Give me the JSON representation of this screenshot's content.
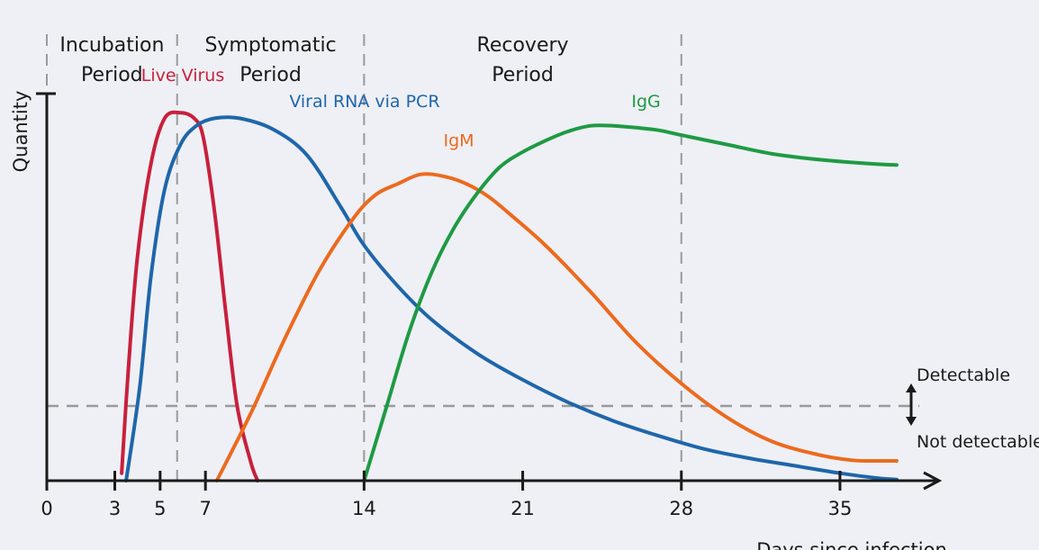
{
  "chart_data": {
    "type": "line",
    "title": "",
    "ylabel": "Quantity",
    "xlabel": "Days since infection",
    "xlim": [
      0,
      38
    ],
    "ylim": [
      0,
      100
    ],
    "x_ticks": [
      0,
      3,
      5,
      7,
      14,
      21,
      28,
      35
    ],
    "grid": false,
    "periods": [
      {
        "name": "Incubation Period",
        "lines": [
          "Incubation",
          "Period"
        ],
        "start": 0,
        "end": 5.75
      },
      {
        "name": "Symptomatic Period",
        "lines": [
          "Symptomatic",
          "Period"
        ],
        "start": 5.75,
        "end": 14
      },
      {
        "name": "Recovery Period",
        "lines": [
          "Recovery",
          "Period"
        ],
        "start": 14,
        "end": 28
      }
    ],
    "period_dividers": [
      0,
      5.75,
      14,
      28
    ],
    "detection_threshold": {
      "y": 20,
      "above_label": "Detectable",
      "below_label": "Not detectable"
    },
    "series": [
      {
        "name": "Live Virus",
        "color": "#c8203c",
        "x": [
          3.3,
          3.6,
          4.0,
          4.6,
          5.2,
          5.9,
          6.5,
          6.9,
          7.4,
          7.9,
          8.4,
          9.0,
          9.3
        ],
        "y": [
          2,
          30,
          60,
          85,
          97,
          98.5,
          97,
          92,
          72,
          45,
          20,
          5,
          0
        ]
      },
      {
        "name": "Viral RNA via PCR",
        "color": "#1f66aa",
        "x": [
          3.5,
          4.1,
          4.6,
          5.2,
          5.9,
          6.6,
          7.4,
          8.5,
          10.0,
          11.5,
          13.0,
          14.0,
          15.5,
          17.0,
          19.0,
          21.0,
          23.0,
          25.0,
          27.0,
          29.0,
          31.0,
          33.0,
          35.0,
          36.5,
          37.5
        ],
        "y": [
          0,
          25,
          55,
          78,
          90,
          95,
          97,
          97,
          94,
          87,
          73,
          63,
          52,
          43,
          34,
          27,
          21,
          16,
          12,
          8.5,
          6,
          4,
          2,
          0.8,
          0.3
        ]
      },
      {
        "name": "IgM",
        "color": "#ec6a1e",
        "x": [
          7.5,
          9,
          10.5,
          12,
          13.5,
          14.5,
          15.5,
          16.5,
          17.5,
          18.5,
          19.5,
          20.5,
          22,
          24,
          26,
          28,
          30,
          32,
          34,
          35.5,
          36.5,
          37.5
        ],
        "y": [
          0,
          18,
          38,
          56,
          70,
          76.5,
          79.5,
          82,
          81.5,
          79.5,
          76,
          71,
          63,
          50.5,
          37,
          26,
          17,
          10.5,
          7,
          5.5,
          5.3,
          5.3
        ]
      },
      {
        "name": "IgG",
        "color": "#1f9a44",
        "x": [
          14,
          15,
          16,
          17,
          18,
          19,
          20,
          21,
          22,
          23,
          24,
          25,
          26,
          27,
          28,
          30,
          32,
          34,
          36,
          37.5
        ],
        "y": [
          0,
          20,
          40,
          56,
          68,
          77,
          84,
          88,
          91,
          93.5,
          95,
          95,
          94.5,
          93.8,
          92.5,
          90,
          87.5,
          86,
          85,
          84.5
        ]
      }
    ],
    "series_labels": [
      {
        "name": "Live Virus",
        "anchor_x": 6.0,
        "anchor_y": 107,
        "align": "middle"
      },
      {
        "name": "Viral RNA via PCR",
        "anchor_x": 10.7,
        "anchor_y": 100,
        "align": "start"
      },
      {
        "name": "IgM",
        "anchor_x": 17.5,
        "anchor_y": 89.5,
        "align": "start"
      },
      {
        "name": "IgG",
        "anchor_x": 25.8,
        "anchor_y": 100,
        "align": "start"
      }
    ]
  }
}
